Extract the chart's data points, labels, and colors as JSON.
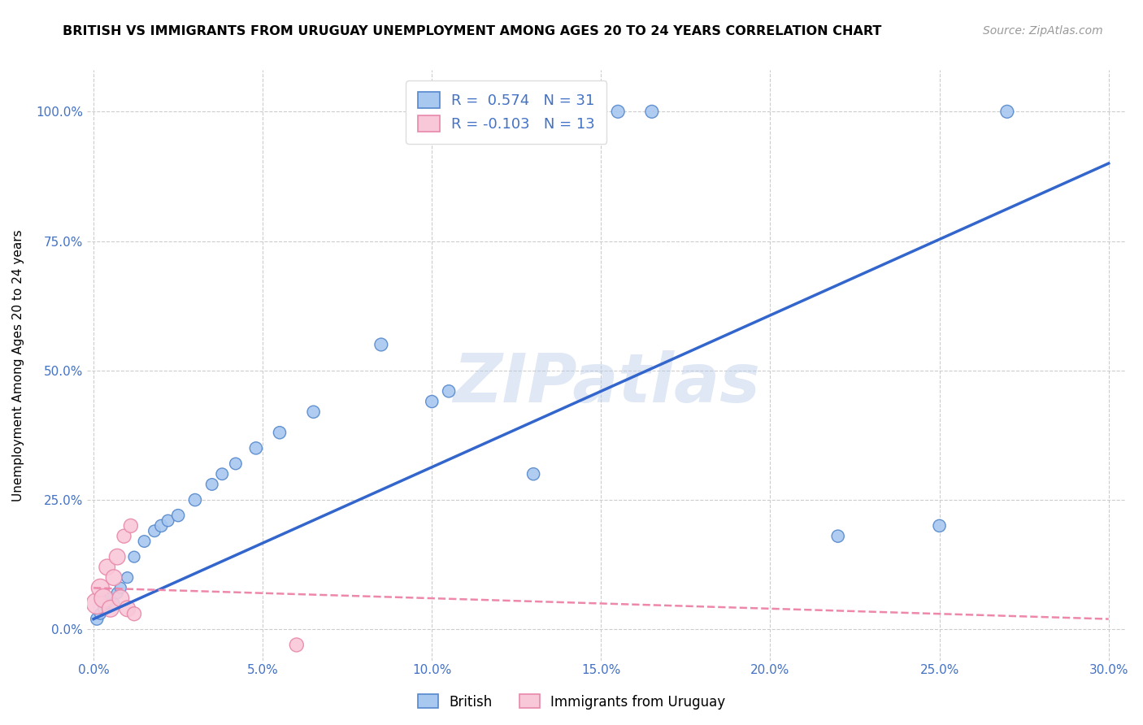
{
  "title": "BRITISH VS IMMIGRANTS FROM URUGUAY UNEMPLOYMENT AMONG AGES 20 TO 24 YEARS CORRELATION CHART",
  "source": "Source: ZipAtlas.com",
  "xlabel_ticks": [
    "0.0%",
    "5.0%",
    "10.0%",
    "15.0%",
    "20.0%",
    "25.0%",
    "30.0%"
  ],
  "xlabel_vals": [
    0.0,
    0.05,
    0.1,
    0.15,
    0.2,
    0.25,
    0.3
  ],
  "ylabel": "Unemployment Among Ages 20 to 24 years",
  "ylabel_ticks": [
    "0.0%",
    "25.0%",
    "50.0%",
    "75.0%",
    "100.0%"
  ],
  "ylabel_vals": [
    0.0,
    0.25,
    0.5,
    0.75,
    1.0
  ],
  "xlim": [
    -0.002,
    0.305
  ],
  "ylim": [
    -0.06,
    1.08
  ],
  "watermark": "ZIPatlas",
  "british_color": "#a8c8f0",
  "british_edge_color": "#5588cc",
  "uruguay_color": "#f9c8d8",
  "uruguay_edge_color": "#e888aa",
  "british_R": 0.574,
  "british_N": 31,
  "uruguay_R": -0.103,
  "uruguay_N": 13,
  "british_line_color": "#3366cc",
  "uruguay_line_color": "#ee88aa",
  "grid_color": "#cccccc",
  "british_x": [
    0.001,
    0.002,
    0.003,
    0.004,
    0.005,
    0.006,
    0.007,
    0.008,
    0.01,
    0.012,
    0.015,
    0.018,
    0.02,
    0.022,
    0.025,
    0.03,
    0.035,
    0.038,
    0.042,
    0.048,
    0.055,
    0.065,
    0.085,
    0.1,
    0.105,
    0.13,
    0.155,
    0.165,
    0.22,
    0.25,
    0.27
  ],
  "british_y": [
    0.02,
    0.03,
    0.04,
    0.05,
    0.06,
    0.05,
    0.07,
    0.08,
    0.1,
    0.14,
    0.17,
    0.19,
    0.2,
    0.21,
    0.22,
    0.25,
    0.28,
    0.3,
    0.32,
    0.35,
    0.38,
    0.42,
    0.55,
    0.44,
    0.46,
    0.3,
    1.0,
    1.0,
    0.18,
    0.2,
    1.0
  ],
  "british_sizes": [
    120,
    100,
    100,
    100,
    100,
    100,
    100,
    100,
    100,
    100,
    110,
    110,
    120,
    110,
    120,
    120,
    110,
    110,
    110,
    120,
    120,
    120,
    130,
    120,
    120,
    120,
    130,
    130,
    120,
    120,
    130
  ],
  "uruguay_x": [
    0.001,
    0.002,
    0.003,
    0.004,
    0.005,
    0.006,
    0.007,
    0.008,
    0.009,
    0.01,
    0.011,
    0.012,
    0.06
  ],
  "uruguay_y": [
    0.05,
    0.08,
    0.06,
    0.12,
    0.04,
    0.1,
    0.14,
    0.06,
    0.18,
    0.04,
    0.2,
    0.03,
    -0.03
  ],
  "uruguay_sizes": [
    350,
    250,
    280,
    200,
    220,
    200,
    200,
    220,
    150,
    200,
    150,
    150,
    150
  ],
  "brit_line_x0": 0.0,
  "brit_line_y0": 0.02,
  "brit_line_x1": 0.3,
  "brit_line_y1": 0.9,
  "urug_line_x0": 0.0,
  "urug_line_y0": 0.08,
  "urug_line_x1": 0.3,
  "urug_line_y1": 0.02
}
